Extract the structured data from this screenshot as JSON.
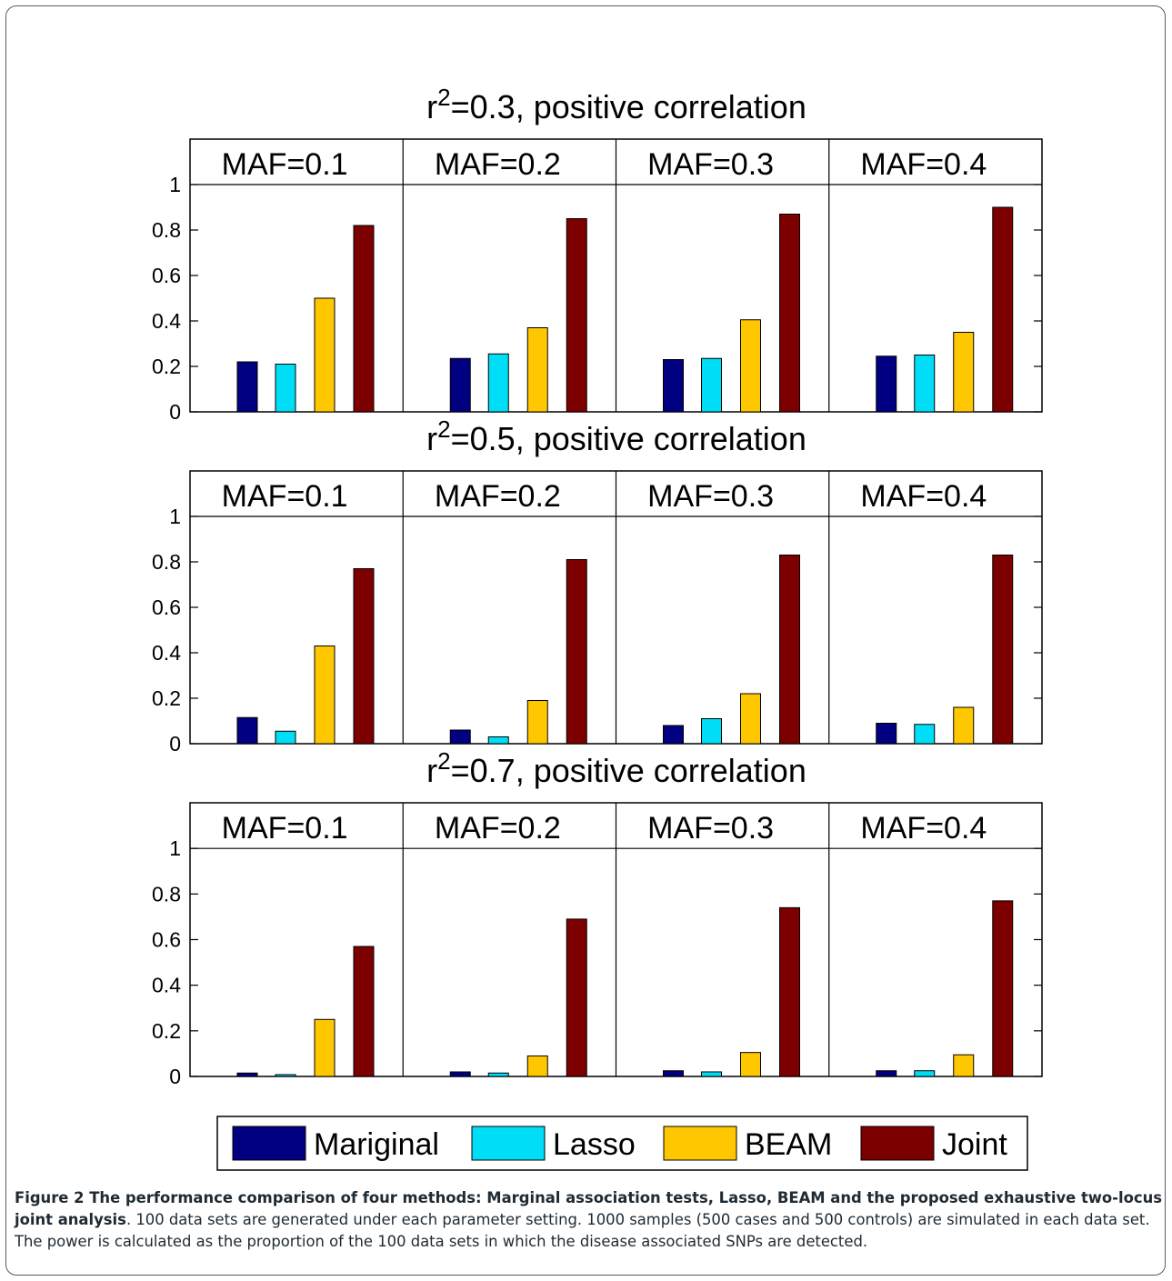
{
  "chart_data": {
    "type": "bar",
    "series_names": [
      "Mariginal",
      "Lasso",
      "BEAM",
      "Joint"
    ],
    "series_colors": [
      "#000080",
      "#00DDF7",
      "#FFC700",
      "#7D0000"
    ],
    "ylim": [
      0,
      1.2
    ],
    "y_ticks": [
      "0",
      "0.2",
      "0.4",
      "0.6",
      "0.8",
      "1"
    ],
    "legend_position": "bottom",
    "rows": [
      {
        "title": "r2=0.3, positive correlation",
        "title_base": "r",
        "title_sup": "2",
        "title_rest": "=0.3, positive correlation",
        "panels": [
          {
            "label": "MAF=0.1",
            "values": [
              0.22,
              0.21,
              0.5,
              0.82
            ]
          },
          {
            "label": "MAF=0.2",
            "values": [
              0.235,
              0.255,
              0.37,
              0.85
            ]
          },
          {
            "label": "MAF=0.3",
            "values": [
              0.23,
              0.235,
              0.405,
              0.87
            ]
          },
          {
            "label": "MAF=0.4",
            "values": [
              0.245,
              0.25,
              0.35,
              0.9
            ]
          }
        ]
      },
      {
        "title": "r2=0.5, positive correlation",
        "title_base": "r",
        "title_sup": "2",
        "title_rest": "=0.5, positive correlation",
        "panels": [
          {
            "label": "MAF=0.1",
            "values": [
              0.115,
              0.055,
              0.43,
              0.77
            ]
          },
          {
            "label": "MAF=0.2",
            "values": [
              0.06,
              0.03,
              0.19,
              0.81
            ]
          },
          {
            "label": "MAF=0.3",
            "values": [
              0.08,
              0.11,
              0.22,
              0.83
            ]
          },
          {
            "label": "MAF=0.4",
            "values": [
              0.09,
              0.085,
              0.16,
              0.83
            ]
          }
        ]
      },
      {
        "title": "r2=0.7, positive correlation",
        "title_base": "r",
        "title_sup": "2",
        "title_rest": "=0.7, positive correlation",
        "panels": [
          {
            "label": "MAF=0.1",
            "values": [
              0.015,
              0.008,
              0.25,
              0.57
            ]
          },
          {
            "label": "MAF=0.2",
            "values": [
              0.02,
              0.015,
              0.09,
              0.69
            ]
          },
          {
            "label": "MAF=0.3",
            "values": [
              0.025,
              0.02,
              0.105,
              0.74
            ]
          },
          {
            "label": "MAF=0.4",
            "values": [
              0.025,
              0.025,
              0.095,
              0.77
            ]
          }
        ]
      }
    ]
  },
  "caption": {
    "bold": "Figure 2 The performance comparison of four methods: Marginal association tests, Lasso, BEAM and the proposed exhaustive two-locus joint analysis",
    "text": ". 100 data sets are generated under each parameter setting. 1000 samples (500 cases and 500 controls) are simulated in each data set. The power is calculated as the proportion of the 100 data sets in which the disease associated SNPs are detected."
  }
}
